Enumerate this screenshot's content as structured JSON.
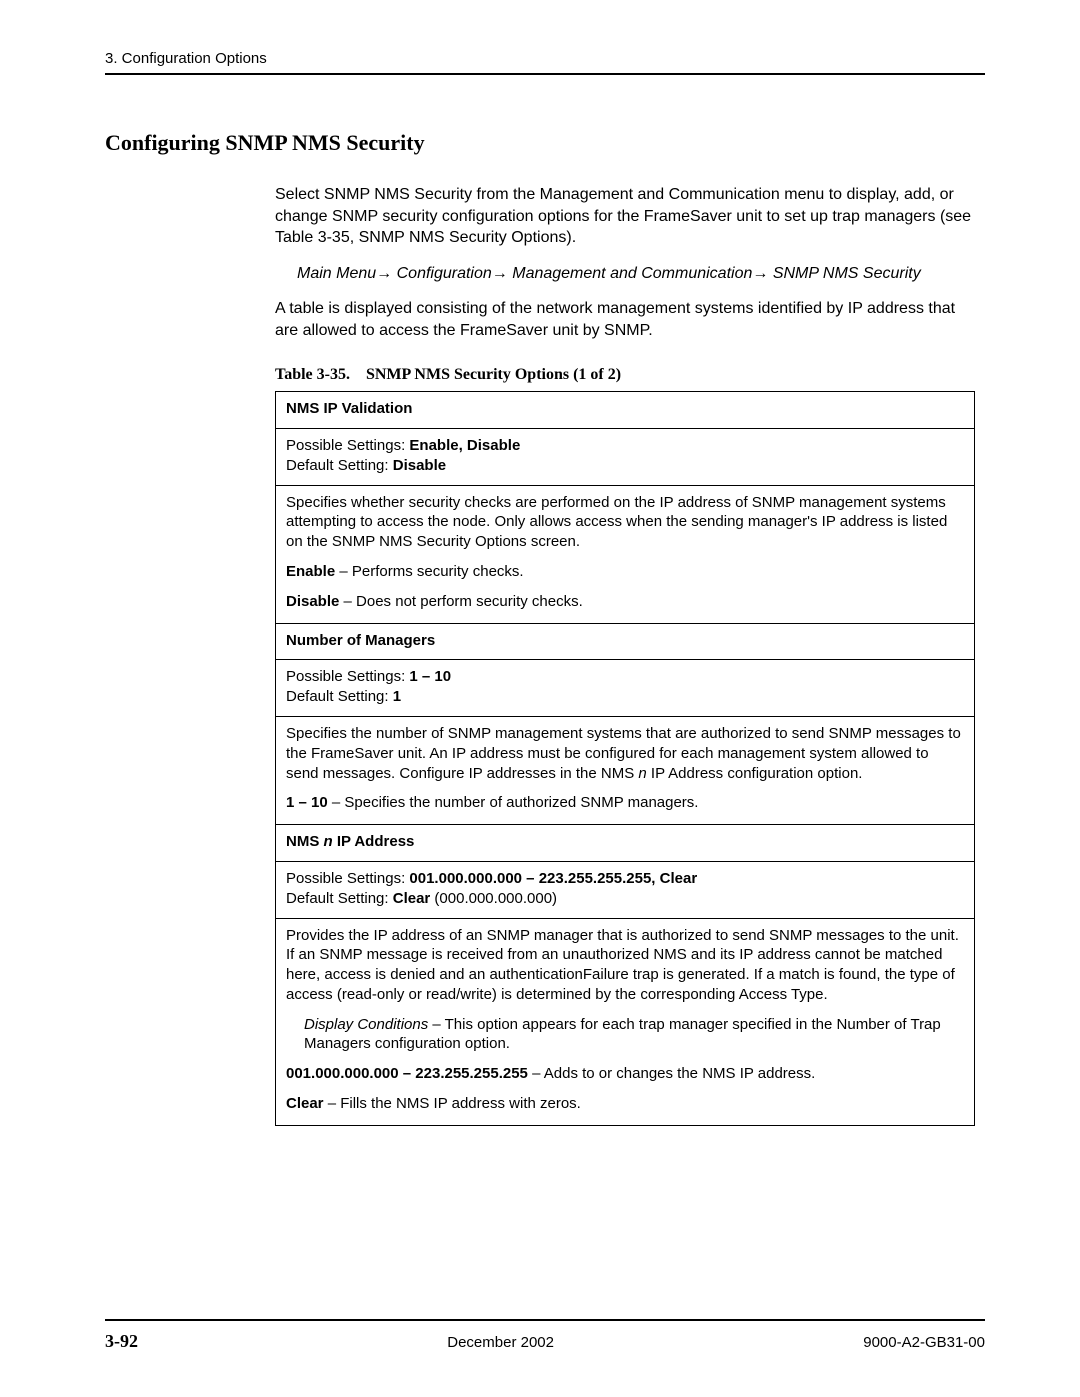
{
  "header": {
    "breadcrumb": "3. Configuration Options"
  },
  "section": {
    "title": "Configuring SNMP NMS Security",
    "intro": "Select SNMP NMS Security from the Management and Communication menu to display, add, or change SNMP security configuration options for the FrameSaver unit to set up trap managers (see Table 3-35, SNMP NMS Security Options).",
    "nav_prefix": "Main Menu",
    "nav_1": "Configuration",
    "nav_2": "Management and Communication",
    "nav_3": " SNMP NMS Security",
    "after_nav": "A table is displayed consisting of the network management systems identified by IP address that are allowed to access the FrameSaver unit by SNMP."
  },
  "table": {
    "title": "Table 3-35. SNMP NMS Security Options (1 of 2)",
    "row1": {
      "header": "NMS IP Validation"
    },
    "row2": {
      "ps_label": "Possible Settings: ",
      "ps_value": "Enable, Disable",
      "ds_label": "Default Setting: ",
      "ds_value": "Disable"
    },
    "row3": {
      "desc": "Specifies whether security checks are performed on the IP address of SNMP management systems attempting to access the node. Only allows access when the sending manager's IP address is listed on the SNMP NMS Security Options screen.",
      "enable_b": "Enable",
      "enable_t": " – Performs security checks.",
      "disable_b": "Disable",
      "disable_t": " – Does not perform security checks."
    },
    "row4": {
      "header": "Number of Managers"
    },
    "row5": {
      "ps_label": "Possible Settings: ",
      "ps_value": "1 – 10",
      "ds_label": "Default Setting: ",
      "ds_value": "1"
    },
    "row6": {
      "desc_a": "Specifies the number of SNMP management systems that are authorized to send SNMP messages to the FrameSaver unit. An IP address must be configured for each management system allowed to send messages. Configure IP addresses in the NMS ",
      "desc_n": "n",
      "desc_b": " IP Address configuration option.",
      "range_b": "1 – 10",
      "range_t": " – Specifies the number of authorized SNMP managers."
    },
    "row7": {
      "header_a": "NMS ",
      "header_n": "n",
      "header_b": " IP Address"
    },
    "row8": {
      "ps_label": "Possible Settings: ",
      "ps_value": "001.000.000.000 – 223.255.255.255, Clear",
      "ds_label": "Default Setting: ",
      "ds_value": "Clear",
      "ds_extra": " (000.000.000.000)"
    },
    "row9": {
      "desc": "Provides the IP address of an SNMP manager that is authorized to send SNMP messages to the unit. If an SNMP message is received from an unauthorized NMS and its IP address cannot be matched here, access is denied and an authenticationFailure trap is generated. If a match is found, the type of access (read-only or read/write) is determined by the corresponding Access Type.",
      "dc_label": "Display Conditions",
      "dc_text": " – This option appears for each trap manager specified in the Number of Trap Managers configuration option.",
      "ip_b": "001.000.000.000 – 223.255.255.255",
      "ip_t": " – Adds to or changes the NMS IP address.",
      "clear_b": "Clear",
      "clear_t": " – Fills the NMS IP address with zeros."
    }
  },
  "footer": {
    "page": "3-92",
    "date": "December 2002",
    "doc": "9000-A2-GB31-00"
  }
}
